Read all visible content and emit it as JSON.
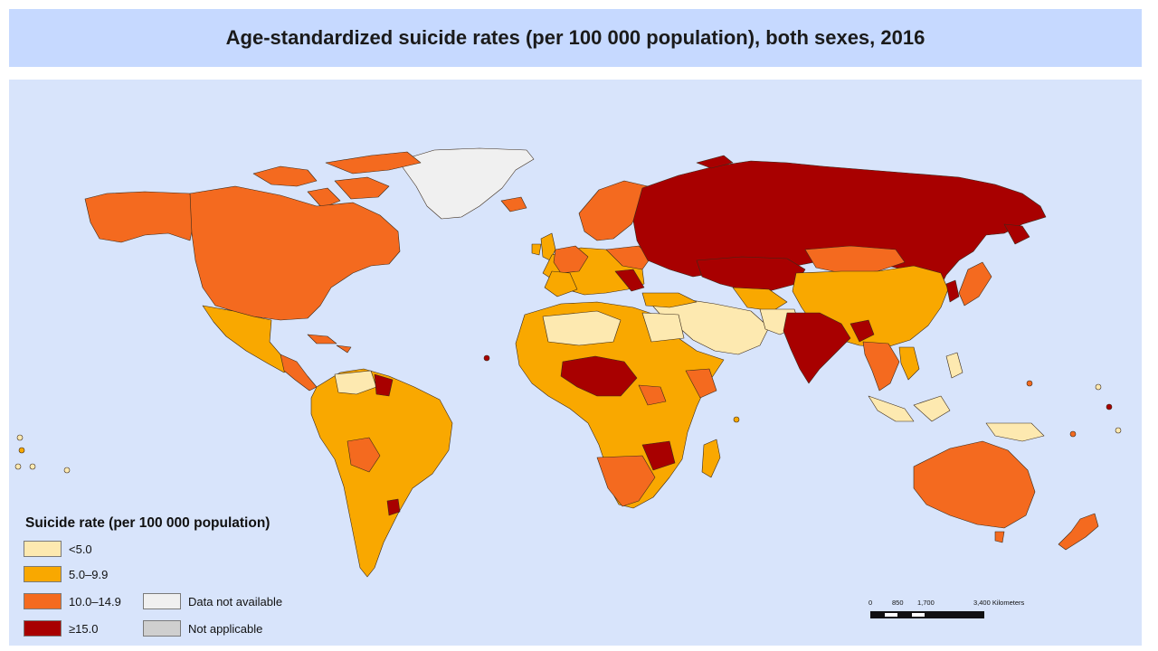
{
  "title": "Age-standardized suicide rates (per 100 000 population), both sexes, 2016",
  "legend": {
    "title": "Suicide rate (per 100 000 population)",
    "items": [
      {
        "label": "<5.0",
        "color": "#fde9b0"
      },
      {
        "label": "5.0–9.9",
        "color": "#f9a800"
      },
      {
        "label": "10.0–14.9",
        "color": "#f46a1f"
      },
      {
        "label": "≥15.0",
        "color": "#a80000"
      },
      {
        "label": "Data not available",
        "color": "#f0f0f0"
      },
      {
        "label": "Not applicable",
        "color": "#cfcfcf"
      }
    ]
  },
  "scale": {
    "ticks": [
      "0",
      "850",
      "1,700",
      "3,400 Kilometers"
    ]
  },
  "colors": {
    "ocean": "#d8e4fb",
    "title_bar": "#c6d9ff",
    "border": "#3a2a1a"
  }
}
